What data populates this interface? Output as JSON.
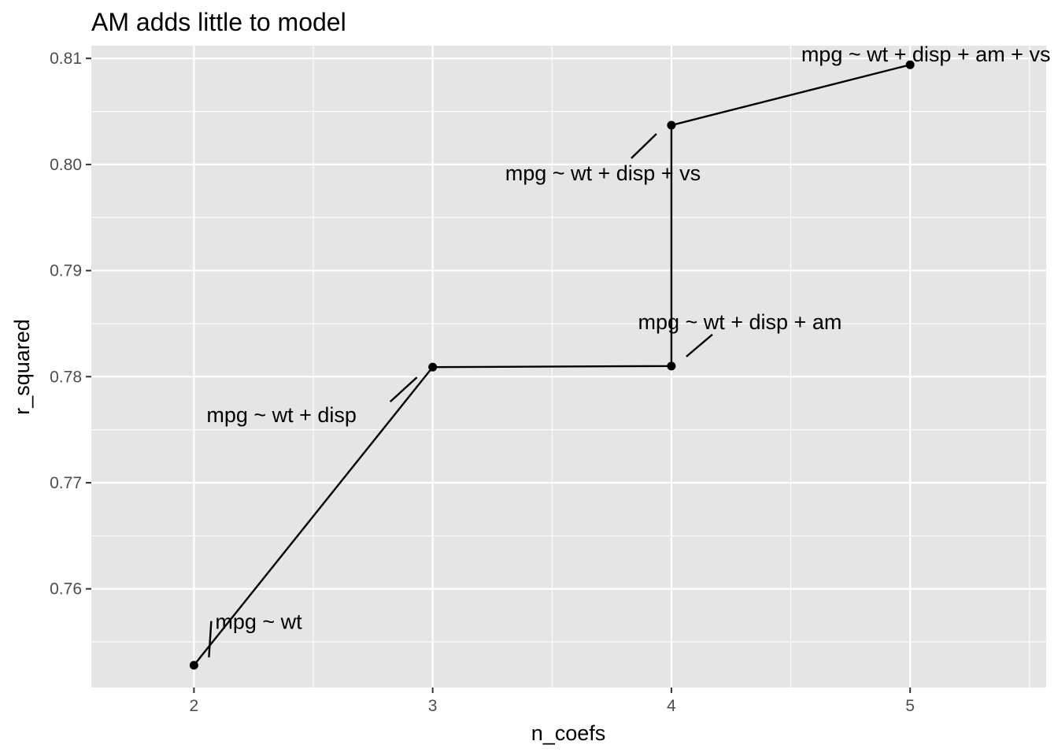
{
  "chart_data": {
    "type": "line",
    "title": "AM adds little to model",
    "xlabel": "n_coefs",
    "ylabel": "r_squared",
    "xlim": [
      1.57,
      5.57
    ],
    "ylim": [
      0.7507,
      0.8112
    ],
    "x_ticks": [
      {
        "value": 2,
        "label": "2"
      },
      {
        "value": 3,
        "label": "3"
      },
      {
        "value": 4,
        "label": "4"
      },
      {
        "value": 5,
        "label": "5"
      }
    ],
    "y_ticks": [
      {
        "value": 0.76,
        "label": "0.76"
      },
      {
        "value": 0.77,
        "label": "0.77"
      },
      {
        "value": 0.78,
        "label": "0.78"
      },
      {
        "value": 0.79,
        "label": "0.79"
      },
      {
        "value": 0.8,
        "label": "0.80"
      },
      {
        "value": 0.81,
        "label": "0.81"
      }
    ],
    "grid": true,
    "legend": "none",
    "background": "#e5e5e5",
    "grid_color": "#ffffff",
    "line_color": "#000000",
    "points": [
      {
        "x": 2,
        "y": 0.7528,
        "label": "mpg ~ wt"
      },
      {
        "x": 3,
        "y": 0.7809,
        "label": "mpg ~ wt + disp"
      },
      {
        "x": 4,
        "y": 0.781,
        "label": "mpg ~ wt + disp + am"
      },
      {
        "x": 4,
        "y": 0.8037,
        "label": "mpg ~ wt + disp + vs"
      },
      {
        "x": 5,
        "y": 0.8094,
        "label": "mpg ~ wt + disp + am + vs"
      }
    ]
  }
}
